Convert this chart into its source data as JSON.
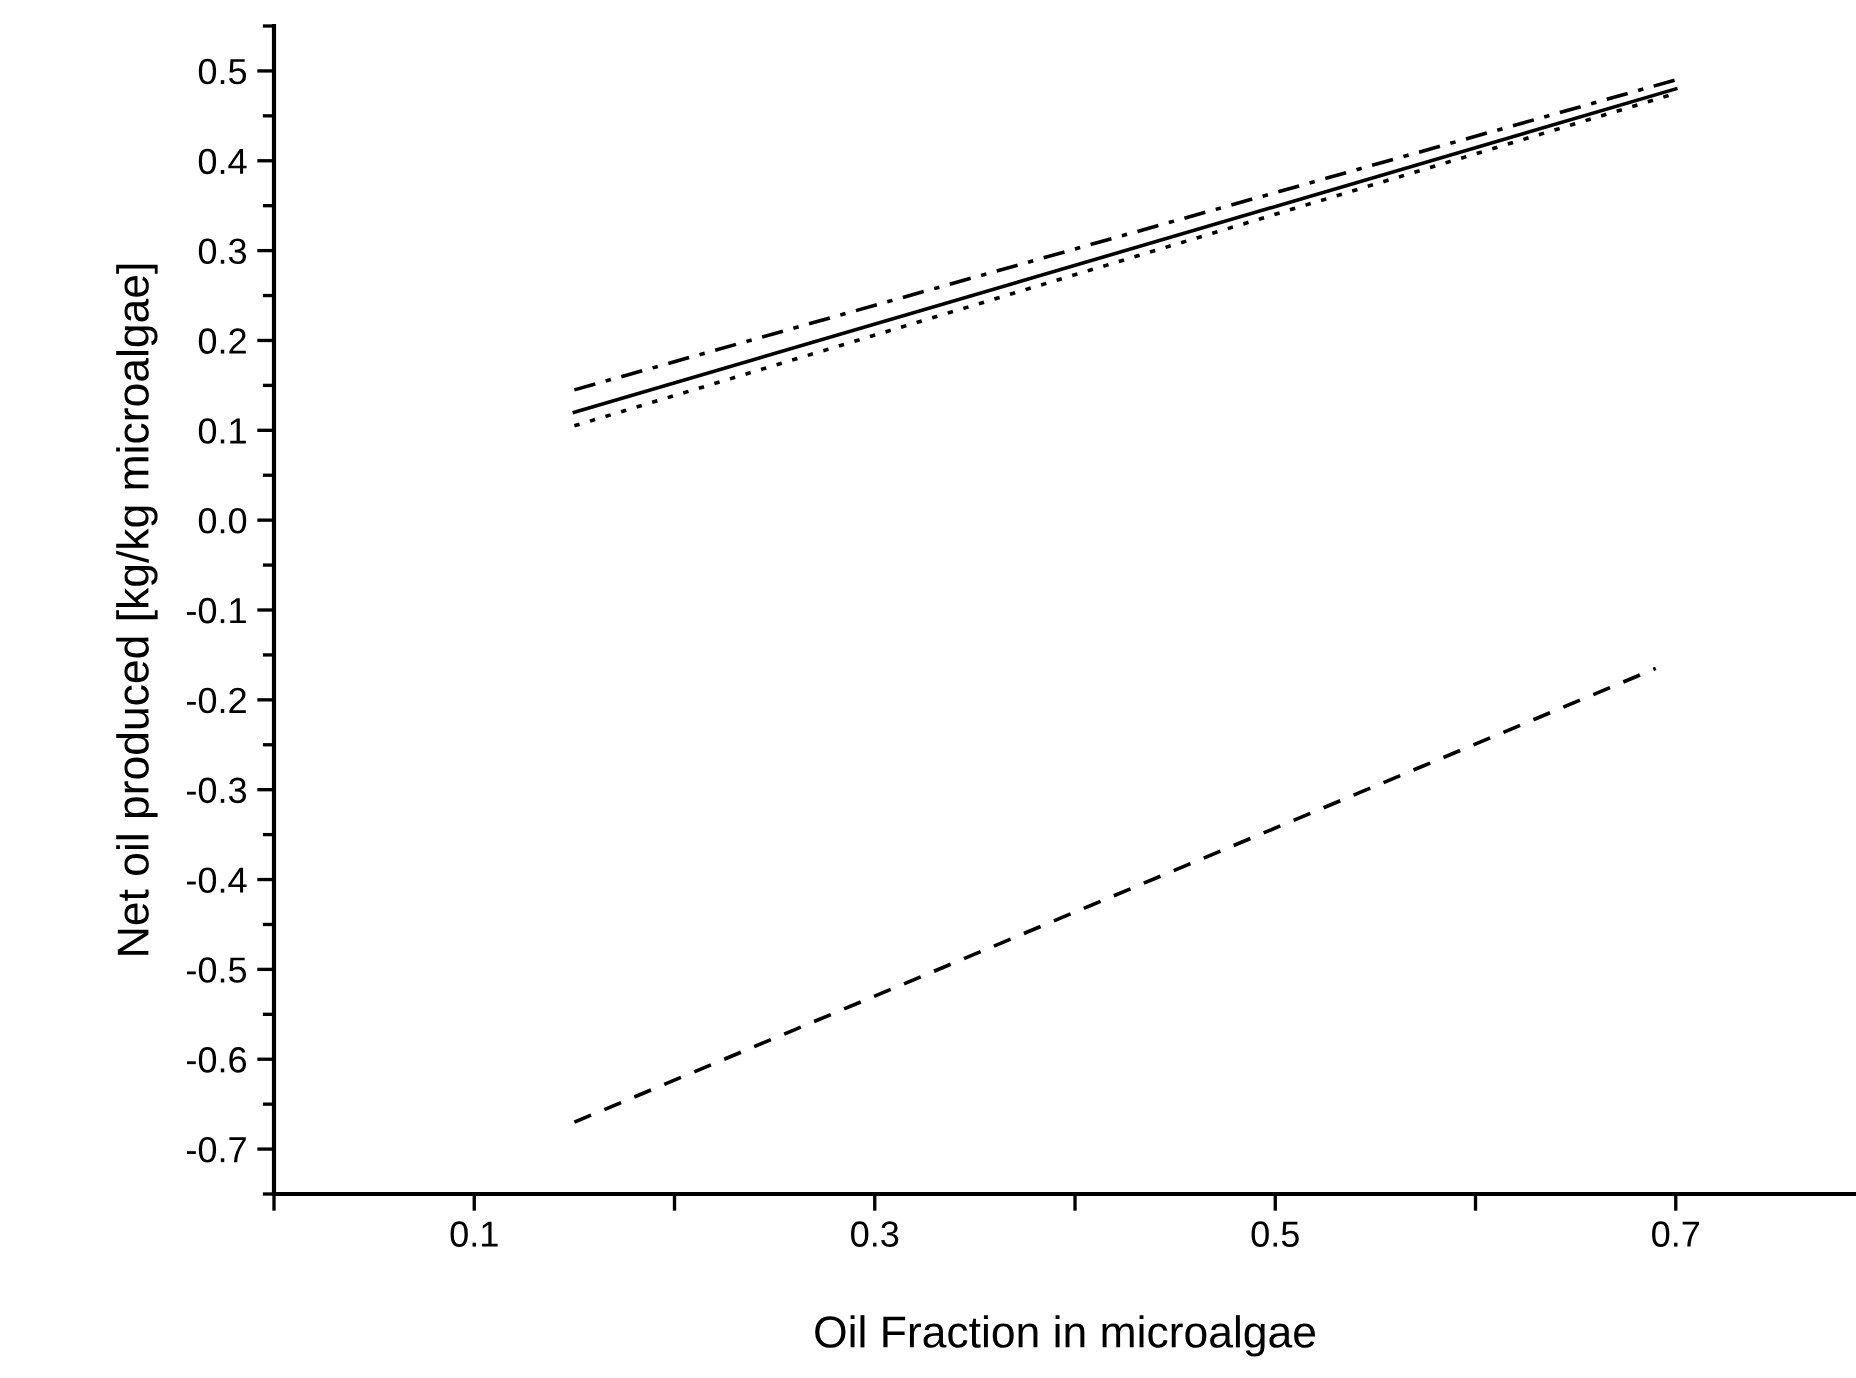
{
  "chart_data": {
    "type": "line",
    "xlabel": "Oil Fraction in microalgae",
    "ylabel": "Net oil produced [kg/kg microalgae]",
    "xlim": [
      0,
      0.79
    ],
    "ylim": [
      -0.75,
      0.55
    ],
    "xticks": [
      {
        "value": 0,
        "label": null
      },
      0.1,
      {
        "value": 0.2,
        "label": null
      },
      0.3,
      {
        "value": 0.4,
        "label": null
      },
      0.5,
      {
        "value": 0.6,
        "label": null
      },
      0.7
    ],
    "yticks": [
      -0.7,
      -0.6,
      -0.5,
      -0.4,
      -0.3,
      -0.2,
      -0.1,
      {
        "value": 0,
        "label": "0.0"
      },
      0.1,
      0.2,
      0.3,
      0.4,
      0.5
    ],
    "grid": false,
    "legend": false,
    "marker": "none",
    "series": [
      {
        "color": "#000000",
        "line_style": "solid",
        "x": [
          0.15,
          0.7
        ],
        "values": [
          0.12,
          0.48
        ]
      },
      {
        "color": "#000000",
        "line_style": "dashdot",
        "x": [
          0.15,
          0.7
        ],
        "values": [
          0.145,
          0.49
        ]
      },
      {
        "color": "#000000",
        "line_style": "dotted",
        "x": [
          0.15,
          0.7
        ],
        "values": [
          0.105,
          0.475
        ]
      },
      {
        "color": "#000000",
        "line_style": "dashed",
        "x": [
          0.15,
          0.69
        ],
        "values": [
          -0.67,
          -0.165
        ]
      }
    ]
  }
}
